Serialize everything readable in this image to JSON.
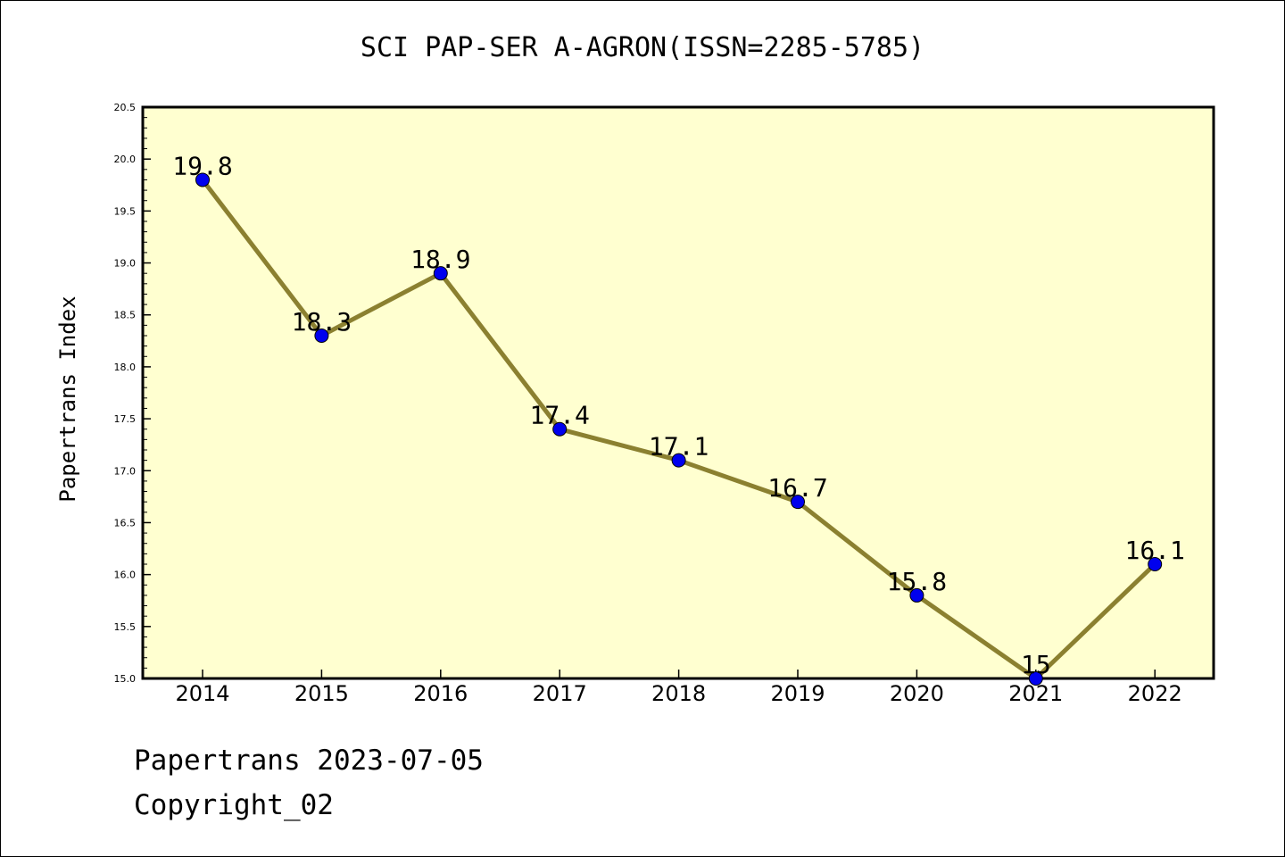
{
  "chart_data": {
    "type": "line",
    "title": "SCI PAP-SER A-AGRON(ISSN=2285-5785)",
    "ylabel": "Papertrans Index",
    "xlabel": "",
    "categories": [
      "2014",
      "2015",
      "2016",
      "2017",
      "2018",
      "2019",
      "2020",
      "2021",
      "2022"
    ],
    "series": [
      {
        "values": [
          19.8,
          18.3,
          18.9,
          17.4,
          17.1,
          16.7,
          15.8,
          15.0,
          16.1
        ]
      }
    ],
    "data_labels": [
      "19.8",
      "18.3",
      "18.9",
      "17.4",
      "17.1",
      "16.7",
      "15.8",
      "15",
      "16.1"
    ],
    "ylim": [
      15.0,
      20.5
    ],
    "y_ticks": [
      "15.0",
      "15.5",
      "16.0",
      "16.5",
      "17.0",
      "17.5",
      "18.0",
      "18.5",
      "19.0",
      "19.5",
      "20.0",
      "20.5"
    ],
    "grid": false,
    "colors": {
      "plot_background": "#ffffd0",
      "line": "#8b8030",
      "marker": "#0000ee"
    }
  },
  "footer": {
    "date_text": "Papertrans 2023-07-05",
    "copyright_text": "Copyright_02"
  }
}
